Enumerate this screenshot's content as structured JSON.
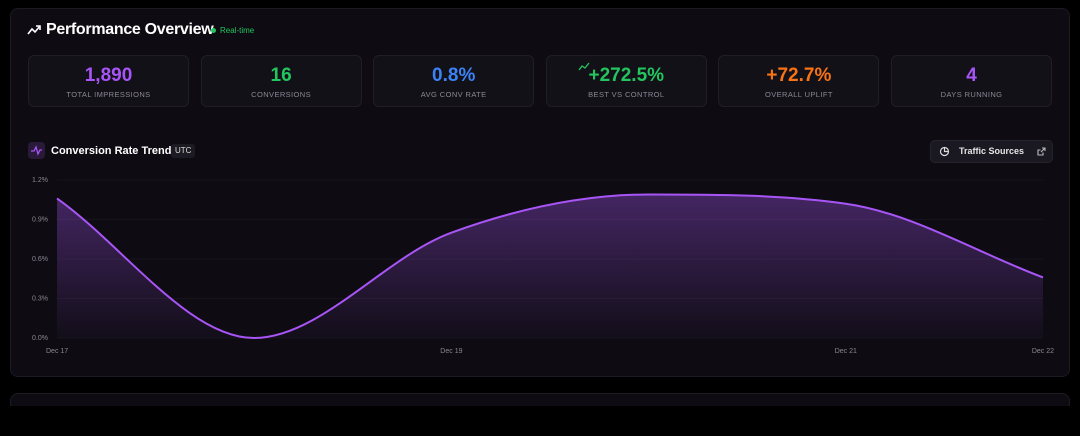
{
  "header": {
    "title": "Performance Overview",
    "badge": "Real-time"
  },
  "stats": [
    {
      "value": "1,890",
      "label": "TOTAL IMPRESSIONS",
      "color": "#a855f7"
    },
    {
      "value": "16",
      "label": "CONVERSIONS",
      "color": "#22c55e"
    },
    {
      "value": "0.8%",
      "label": "AVG CONV RATE",
      "color": "#3b82f6"
    },
    {
      "value": "+272.5%",
      "label": "BEST VS CONTROL",
      "color": "#22c55e"
    },
    {
      "value": "+72.7%",
      "label": "OVERALL UPLIFT",
      "color": "#f97316"
    },
    {
      "value": "4",
      "label": "DAYS RUNNING",
      "color": "#a855f7"
    }
  ],
  "chart_panel": {
    "badge": "UTC",
    "button": "Traffic Sources"
  },
  "chart_data": {
    "type": "line",
    "title": "Conversion Rate Trend",
    "categories": [
      "Dec 17",
      null,
      "Dec 19",
      null,
      "Dec 21",
      "Dec 22"
    ],
    "values": [
      1.06,
      0.0,
      0.8,
      1.09,
      1.02,
      0.46
    ],
    "color": "#a855f7",
    "ylim": [
      0,
      1.2
    ],
    "yticks": [
      {
        "value": 0,
        "label": "0.0%"
      },
      {
        "value": 0.3,
        "label": "0.3%"
      },
      {
        "value": 0.6,
        "label": "0.6%"
      },
      {
        "value": 0.9,
        "label": "0.9%"
      },
      {
        "value": 1.2,
        "label": "1.2%"
      }
    ],
    "grid": true
  }
}
